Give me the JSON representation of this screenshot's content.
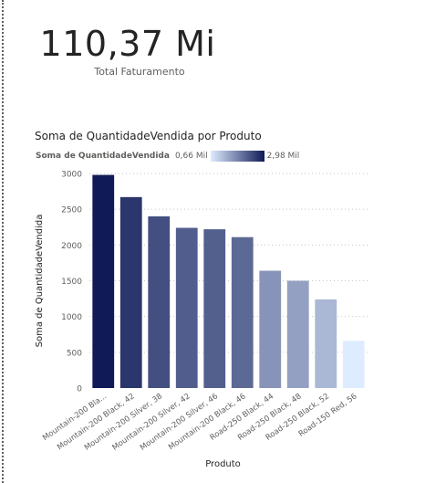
{
  "kpi": {
    "value": "110,37 Mi",
    "label": "Total Faturamento"
  },
  "chart": {
    "title": "Soma de QuantidadeVendida por Produto",
    "legend": {
      "title": "Soma de QuantidadeVendida",
      "min_label": "0,66 Mil",
      "max_label": "2,98 Mil",
      "min_color": "#deecff",
      "max_color": "#0f1a56"
    }
  },
  "chart_data": {
    "type": "bar",
    "title": "Soma de QuantidadeVendida por Produto",
    "xlabel": "Produto",
    "ylabel": "Soma de QuantidadeVendida",
    "ylim": [
      0,
      3000
    ],
    "yticks": [
      0,
      500,
      1000,
      1500,
      2000,
      2500,
      3000
    ],
    "grid": true,
    "legend_position": "top-left",
    "categories": [
      "Mountain-200 Bla...",
      "Mountain-200 Black, 42",
      "Mountain-200 Silver, 38",
      "Mountain-200 Silver, 42",
      "Mountain-200 Silver, 46",
      "Mountain-200 Black, 46",
      "Road-250 Black, 44",
      "Road-250 Black, 48",
      "Road-250 Black, 52",
      "Road-150 Red, 56"
    ],
    "values": [
      2980,
      2670,
      2400,
      2240,
      2220,
      2110,
      1640,
      1500,
      1240,
      660
    ]
  }
}
